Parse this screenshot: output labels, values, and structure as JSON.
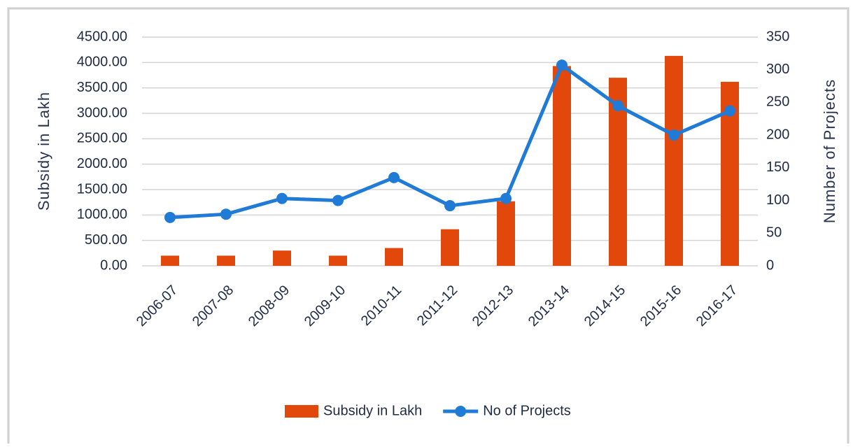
{
  "chart_data": {
    "type": "bar",
    "y_label": "Subsidy in Lakh",
    "y2_label": "Number of Projects",
    "categories": [
      "2006-07",
      "2007-08",
      "2008-09",
      "2009-10",
      "2010-11",
      "2011-12",
      "2012-13",
      "2013-14",
      "2014-15",
      "2015-16",
      "2016-17"
    ],
    "series": [
      {
        "name": "Subsidy in Lakh",
        "type": "bar",
        "color": "#e2470b",
        "axis": "y",
        "values": [
          200,
          200,
          300,
          200,
          350,
          720,
          1270,
          3930,
          3700,
          4130,
          3620
        ]
      },
      {
        "name": "No of Projects",
        "type": "line",
        "color": "#1f7bd6",
        "axis": "y2",
        "values": [
          74,
          79,
          103,
          100,
          135,
          92,
          103,
          307,
          245,
          200,
          237
        ]
      }
    ],
    "ylim": [
      0,
      4500
    ],
    "yticks": [
      {
        "value": 0,
        "label": "0.00"
      },
      {
        "value": 500,
        "label": "500.00"
      },
      {
        "value": 1000,
        "label": "1000.00"
      },
      {
        "value": 1500,
        "label": "1500.00"
      },
      {
        "value": 2000,
        "label": "2000.00"
      },
      {
        "value": 2500,
        "label": "2500.00"
      },
      {
        "value": 3000,
        "label": "3000.00"
      },
      {
        "value": 3500,
        "label": "3500.00"
      },
      {
        "value": 4000,
        "label": "4000.00"
      },
      {
        "value": 4500,
        "label": "4500.00"
      }
    ],
    "y2lim": [
      0,
      350
    ],
    "y2ticks": [
      0,
      50,
      100,
      150,
      200,
      250,
      300,
      350
    ],
    "grid": true,
    "legend": "bottom"
  }
}
